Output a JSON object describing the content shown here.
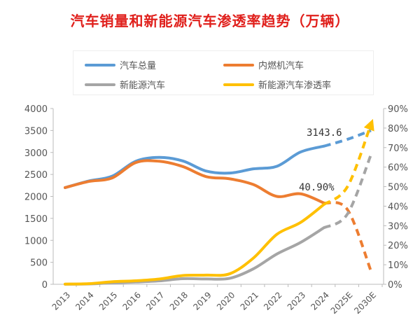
{
  "chart_data": {
    "type": "line",
    "title": "汽车销量和新能源汽车渗透率趋势（万辆）",
    "categories": [
      "2013",
      "2014",
      "2015",
      "2016",
      "2017",
      "2018",
      "2019",
      "2020",
      "2021",
      "2022",
      "2023",
      "2024",
      "2025E",
      "2030E"
    ],
    "forecast_from": "2024",
    "y_left": {
      "min": 0,
      "max": 4000,
      "ticks": [
        0,
        500,
        1000,
        1500,
        2000,
        2500,
        3000,
        3500,
        4000
      ]
    },
    "y_right": {
      "min": 0,
      "max": 90,
      "ticks": [
        "0%",
        "10%",
        "20%",
        "30%",
        "40%",
        "50%",
        "60%",
        "70%",
        "80%",
        "90%"
      ]
    },
    "series": [
      {
        "name": "汽车总量",
        "axis": "left",
        "color": "#5b9bd5",
        "values": [
          2200,
          2350,
          2460,
          2800,
          2888,
          2808,
          2576,
          2531,
          2627,
          2686,
          3009,
          3143.6,
          3300,
          3500
        ]
      },
      {
        "name": "内燃机汽车",
        "axis": "left",
        "color": "#ed7d31",
        "values": [
          2200,
          2340,
          2420,
          2770,
          2800,
          2680,
          2450,
          2400,
          2270,
          2000,
          2060,
          1850,
          1700,
          300
        ]
      },
      {
        "name": "新能源汽车",
        "axis": "left",
        "color": "#a5a5a5",
        "values": [
          2,
          7,
          33,
          51,
          77,
          127,
          121,
          137,
          352,
          689,
          950,
          1287,
          1600,
          2950
        ]
      },
      {
        "name": "新能源汽车渗透率",
        "axis": "right",
        "color": "#ffc000",
        "values": [
          0.1,
          0.3,
          1.3,
          1.8,
          2.7,
          4.5,
          4.7,
          5.4,
          13.4,
          25.6,
          31.6,
          40.9,
          50,
          82
        ]
      }
    ],
    "annotations": [
      "3143.6",
      "40.90%"
    ],
    "legend": "top"
  }
}
